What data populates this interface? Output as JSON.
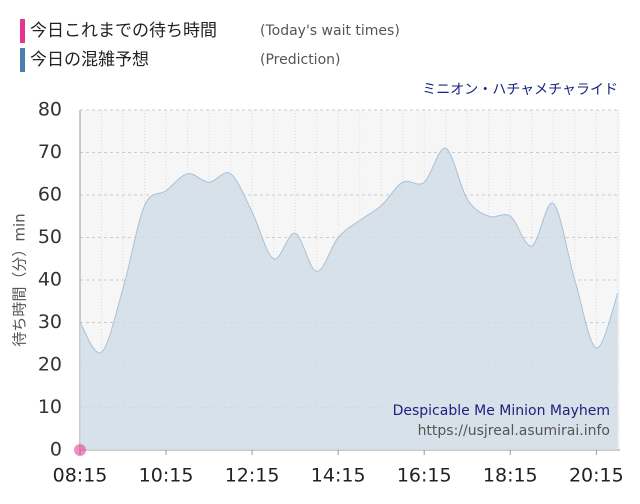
{
  "chart_data": {
    "type": "area",
    "subtitle": "ミニオン・ハチャメチャライド",
    "ylabel": "待ち時間（分）min",
    "annotations": [
      "Despicable Me Minion Mayhem",
      "https://usjreal.asumirai.info"
    ],
    "x": [
      "08:15",
      "08:45",
      "09:15",
      "09:45",
      "10:15",
      "10:45",
      "11:15",
      "11:45",
      "12:15",
      "12:45",
      "13:15",
      "13:45",
      "14:15",
      "14:45",
      "15:15",
      "15:45",
      "16:15",
      "16:45",
      "17:15",
      "17:45",
      "18:15",
      "18:45",
      "19:15",
      "19:45",
      "20:15",
      "20:45"
    ],
    "series": [
      {
        "name": "今日これまでの待ち時間",
        "legend_note": "(Today's wait times)",
        "color": "#e8338f",
        "kind": "point",
        "values": [
          0,
          null,
          null,
          null,
          null,
          null,
          null,
          null,
          null,
          null,
          null,
          null,
          null,
          null,
          null,
          null,
          null,
          null,
          null,
          null,
          null,
          null,
          null,
          null,
          null,
          null
        ]
      },
      {
        "name": "今日の混雑予想",
        "legend_note": "(Prediction)",
        "color": "#4a7fb0",
        "kind": "area",
        "values": [
          30,
          23,
          38,
          57.5,
          61,
          65,
          63,
          65,
          56,
          45,
          51,
          42,
          50,
          54,
          57.5,
          63,
          63,
          71,
          59,
          55,
          55,
          48,
          58,
          40,
          24,
          37
        ]
      }
    ],
    "xlim": [
      "08:15",
      "20:48"
    ],
    "xticks": [
      "08:15",
      "10:15",
      "12:15",
      "14:15",
      "16:15",
      "18:15",
      "20:15"
    ],
    "ylim": [
      0,
      80
    ],
    "yticks": [
      0,
      10,
      20,
      30,
      40,
      50,
      60,
      70,
      80
    ],
    "grid": true
  }
}
